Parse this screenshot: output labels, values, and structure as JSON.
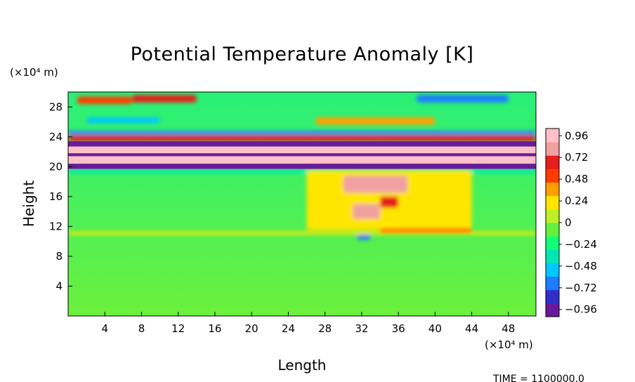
{
  "chart_data": {
    "type": "heatmap",
    "title": "Potential Temperature Anomaly [K]",
    "xlabel": "Length",
    "ylabel": "Height",
    "x_unit": "(×10⁴ m)",
    "y_unit": "(×10⁴ m)",
    "xlim": [
      0,
      51
    ],
    "ylim": [
      0,
      30
    ],
    "x_ticks": [
      4,
      8,
      12,
      16,
      20,
      24,
      28,
      32,
      36,
      40,
      44,
      48
    ],
    "y_ticks": [
      4,
      8,
      12,
      16,
      20,
      24,
      28
    ],
    "colorbar": {
      "range": [
        -1.04,
        1.04
      ],
      "ticks": [
        "0.96",
        "0.72",
        "0.48",
        "0.24",
        "0",
        "−0.24",
        "−0.48",
        "−0.72",
        "−0.96"
      ],
      "tick_values": [
        0.96,
        0.72,
        0.48,
        0.24,
        0,
        -0.24,
        -0.48,
        -0.72,
        -0.96
      ],
      "colors": [
        "#6a1a9a",
        "#3030c8",
        "#1e7dff",
        "#00c8ff",
        "#00e6b4",
        "#14ff78",
        "#64f03c",
        "#bef028",
        "#ffe600",
        "#ffa000",
        "#ff3c00",
        "#e61e1e",
        "#f0a0a0",
        "#ffc0c8"
      ]
    },
    "bands": [
      {
        "y_min": 19.7,
        "y_max": 20.4,
        "value": -0.96
      },
      {
        "y_min": 20.4,
        "y_max": 21.4,
        "value": 1.0
      },
      {
        "y_min": 21.4,
        "y_max": 21.8,
        "value": -0.96
      },
      {
        "y_min": 21.8,
        "y_max": 22.7,
        "value": 1.0
      },
      {
        "y_min": 22.7,
        "y_max": 23.4,
        "value": -0.96
      }
    ],
    "features": [
      {
        "x_min": 0,
        "x_max": 51,
        "y_min": 23.4,
        "y_max": 24.2,
        "value": 0.6
      },
      {
        "x_min": 0,
        "x_max": 51,
        "y_min": 24.3,
        "y_max": 24.8,
        "value": -0.6
      },
      {
        "x_min": 0,
        "x_max": 51,
        "y_min": 19.1,
        "y_max": 19.6,
        "value": -0.3
      },
      {
        "x_min": 1,
        "x_max": 7,
        "y_min": 28.4,
        "y_max": 29.4,
        "value": 0.5
      },
      {
        "x_min": 7,
        "x_max": 14,
        "y_min": 28.6,
        "y_max": 29.6,
        "value": 0.6
      },
      {
        "x_min": 38,
        "x_max": 48,
        "y_min": 28.6,
        "y_max": 29.6,
        "value": -0.6
      },
      {
        "x_min": 2,
        "x_max": 10,
        "y_min": 25.8,
        "y_max": 26.6,
        "value": -0.5
      },
      {
        "x_min": 27,
        "x_max": 40,
        "y_min": 25.6,
        "y_max": 26.6,
        "value": 0.35
      },
      {
        "x_min": 26,
        "x_max": 44,
        "y_min": 11.5,
        "y_max": 19.5,
        "value": 0.25
      },
      {
        "x_min": 30,
        "x_max": 37,
        "y_min": 16.5,
        "y_max": 18.8,
        "value": 0.8
      },
      {
        "x_min": 31,
        "x_max": 34,
        "y_min": 13.0,
        "y_max": 15.0,
        "value": 0.75
      },
      {
        "x_min": 34,
        "x_max": 36,
        "y_min": 14.5,
        "y_max": 16.0,
        "value": 0.7
      },
      {
        "x_min": 31.5,
        "x_max": 33,
        "y_min": 10.2,
        "y_max": 10.9,
        "value": -0.7
      },
      {
        "x_min": 0,
        "x_max": 51,
        "y_min": 10.9,
        "y_max": 11.3,
        "value": 0.15
      },
      {
        "x_min": 34,
        "x_max": 44,
        "y_min": 11.2,
        "y_max": 11.7,
        "value": 0.5
      }
    ]
  },
  "footer": {
    "time_label": "TIME = 1100000.0"
  }
}
